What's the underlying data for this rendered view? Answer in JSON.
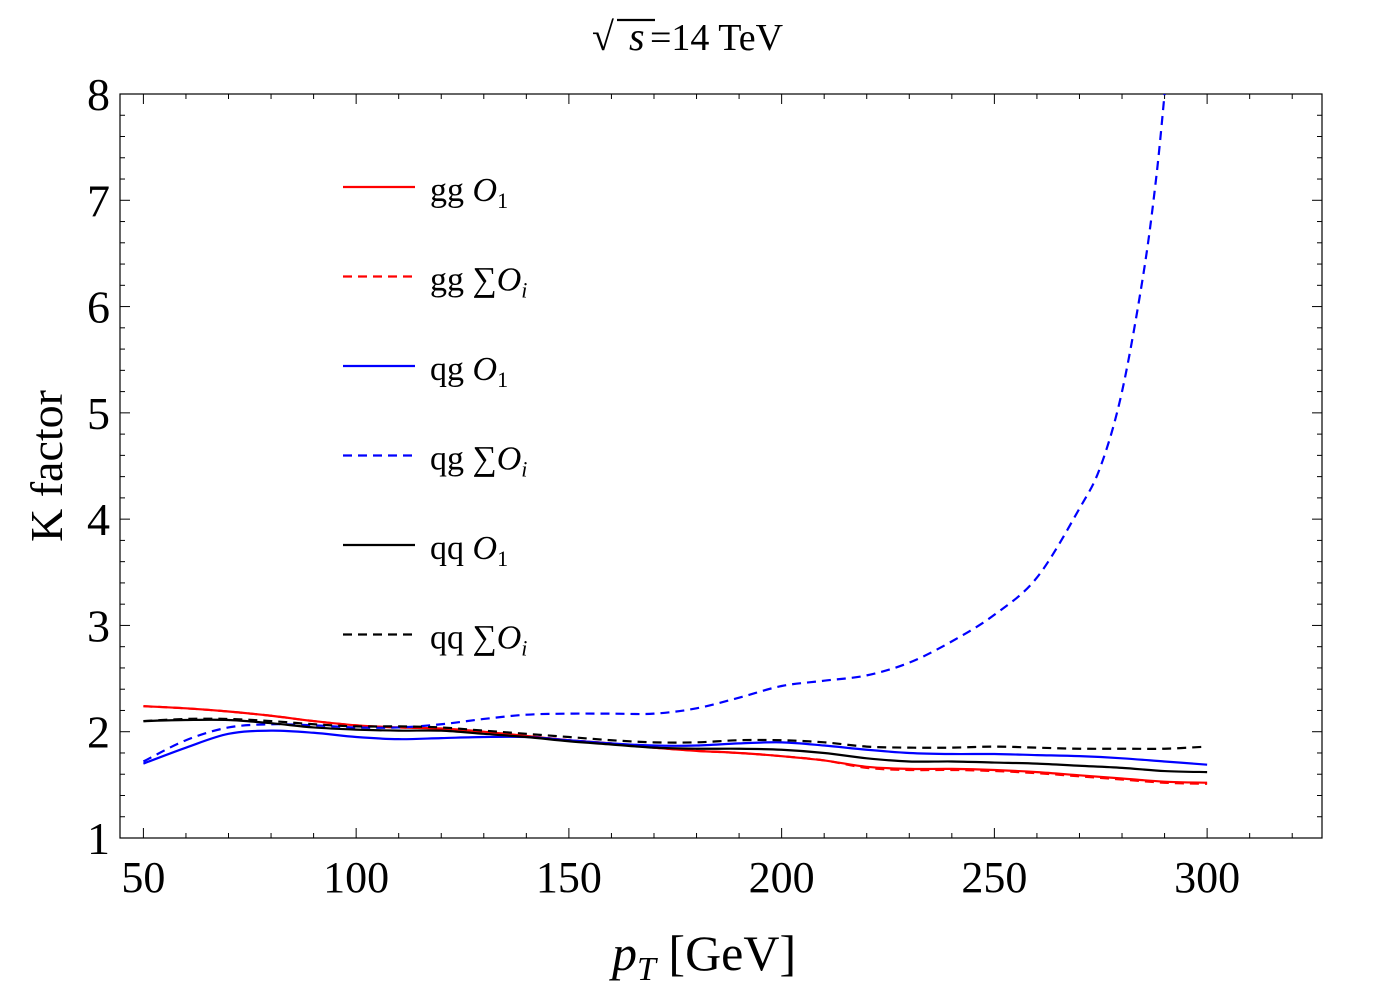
{
  "chart_data": {
    "type": "line",
    "title": "√s = 14 TeV",
    "title_parts": {
      "root": "√",
      "var": "s",
      "rest": " =14 TeV"
    },
    "xlabel": "p_T [GeV]",
    "xlabel_parts": {
      "var": "p",
      "sub": "T",
      "rest": " [GeV]"
    },
    "ylabel": "K factor",
    "xlim": [
      44.5,
      327
    ],
    "ylim": [
      1,
      8
    ],
    "xticks": [
      50,
      100,
      150,
      200,
      250,
      300
    ],
    "yticks": [
      1,
      2,
      3,
      4,
      5,
      6,
      7,
      8
    ],
    "grid": false,
    "legend_position": "top-left",
    "series": [
      {
        "name": "gg O1",
        "label_prefix": "gg ",
        "label_op": "O",
        "label_sub": "1",
        "color": "#ff0000",
        "dash": "solid",
        "x": [
          50,
          60,
          70,
          80,
          90,
          100,
          110,
          120,
          130,
          140,
          150,
          160,
          170,
          180,
          190,
          200,
          210,
          220,
          230,
          240,
          250,
          260,
          270,
          280,
          290,
          300
        ],
        "y": [
          2.24,
          2.22,
          2.19,
          2.15,
          2.1,
          2.06,
          2.04,
          2.03,
          2.0,
          1.96,
          1.92,
          1.89,
          1.85,
          1.82,
          1.8,
          1.77,
          1.73,
          1.67,
          1.65,
          1.65,
          1.64,
          1.62,
          1.59,
          1.56,
          1.53,
          1.52
        ]
      },
      {
        "name": "gg ΣOi",
        "label_prefix": "gg ",
        "label_op": "∑O",
        "label_sub": "i",
        "color": "#ff0000",
        "dash": "dashed",
        "x": [
          50,
          60,
          70,
          80,
          90,
          100,
          110,
          120,
          130,
          140,
          150,
          160,
          170,
          180,
          190,
          200,
          210,
          220,
          230,
          240,
          250,
          260,
          270,
          280,
          290,
          300
        ],
        "y": [
          2.24,
          2.22,
          2.19,
          2.15,
          2.1,
          2.06,
          2.04,
          2.03,
          2.0,
          1.96,
          1.92,
          1.89,
          1.85,
          1.82,
          1.8,
          1.77,
          1.73,
          1.66,
          1.64,
          1.64,
          1.63,
          1.61,
          1.58,
          1.55,
          1.52,
          1.51
        ]
      },
      {
        "name": "qg O1",
        "label_prefix": "qg ",
        "label_op": "O",
        "label_sub": "1",
        "color": "#0000ff",
        "dash": "solid",
        "x": [
          50,
          60,
          70,
          80,
          90,
          100,
          110,
          120,
          130,
          140,
          150,
          160,
          170,
          180,
          190,
          200,
          210,
          220,
          230,
          240,
          250,
          260,
          270,
          280,
          290,
          300
        ],
        "y": [
          1.7,
          1.85,
          1.98,
          2.01,
          1.99,
          1.95,
          1.93,
          1.94,
          1.95,
          1.95,
          1.92,
          1.89,
          1.87,
          1.87,
          1.89,
          1.9,
          1.87,
          1.83,
          1.8,
          1.79,
          1.79,
          1.78,
          1.77,
          1.75,
          1.72,
          1.69
        ]
      },
      {
        "name": "qg ΣOi",
        "label_prefix": "qg ",
        "label_op": "∑O",
        "label_sub": "i",
        "color": "#0000ff",
        "dash": "dashed",
        "x": [
          50,
          60,
          70,
          80,
          90,
          100,
          110,
          120,
          130,
          140,
          150,
          160,
          170,
          180,
          190,
          200,
          210,
          220,
          230,
          240,
          250,
          260,
          270,
          275,
          280,
          285,
          288,
          290
        ],
        "y": [
          1.72,
          1.92,
          2.04,
          2.07,
          2.06,
          2.04,
          2.04,
          2.07,
          2.12,
          2.16,
          2.17,
          2.17,
          2.17,
          2.22,
          2.32,
          2.43,
          2.48,
          2.53,
          2.65,
          2.85,
          3.1,
          3.45,
          4.1,
          4.5,
          5.2,
          6.3,
          7.2,
          8.0
        ]
      },
      {
        "name": "qq O1",
        "label_prefix": "qq ",
        "label_op": "O",
        "label_sub": "1",
        "color": "#000000",
        "dash": "solid",
        "x": [
          50,
          60,
          70,
          80,
          90,
          100,
          110,
          120,
          130,
          140,
          150,
          160,
          170,
          180,
          190,
          200,
          210,
          220,
          230,
          240,
          250,
          260,
          270,
          280,
          290,
          300
        ],
        "y": [
          2.1,
          2.11,
          2.11,
          2.08,
          2.04,
          2.02,
          2.01,
          2.01,
          1.98,
          1.95,
          1.91,
          1.88,
          1.85,
          1.84,
          1.84,
          1.83,
          1.8,
          1.75,
          1.72,
          1.72,
          1.71,
          1.7,
          1.68,
          1.66,
          1.63,
          1.62
        ]
      },
      {
        "name": "qq ΣOi",
        "label_prefix": "qq ",
        "label_op": "∑O",
        "label_sub": "i",
        "color": "#000000",
        "dash": "dashed",
        "x": [
          50,
          60,
          70,
          80,
          90,
          100,
          110,
          120,
          130,
          140,
          150,
          160,
          170,
          180,
          190,
          200,
          210,
          220,
          230,
          240,
          250,
          260,
          270,
          280,
          290,
          300
        ],
        "y": [
          2.1,
          2.12,
          2.12,
          2.1,
          2.07,
          2.05,
          2.05,
          2.04,
          2.01,
          1.98,
          1.95,
          1.92,
          1.9,
          1.9,
          1.92,
          1.92,
          1.9,
          1.86,
          1.85,
          1.85,
          1.86,
          1.85,
          1.84,
          1.84,
          1.84,
          1.86
        ]
      }
    ]
  }
}
